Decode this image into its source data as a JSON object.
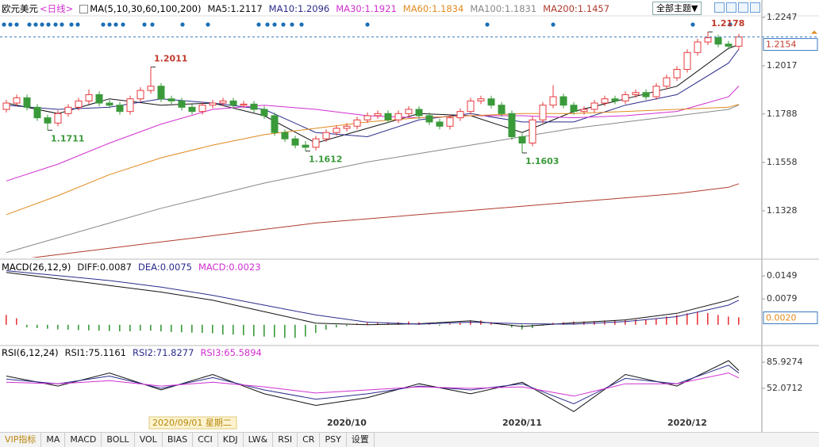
{
  "chart_data": {
    "type": "candlestick",
    "title": "欧元美元",
    "period": "<日线>",
    "indicator": "MA(5,10,30,60,100,200)",
    "toolbar": "全部主题▼",
    "up_color": "#e8383d",
    "down_color": "#3a9a3a",
    "ylim": [
      1.1106,
      1.2273
    ],
    "yticks": [
      1.2247,
      1.2017,
      1.1788,
      1.1558,
      1.1328
    ],
    "last_price": 1.2154,
    "candles": [
      [
        1.181,
        1.1855,
        1.1795,
        1.184
      ],
      [
        1.184,
        1.188,
        1.1825,
        1.1865
      ],
      [
        1.1865,
        1.188,
        1.1805,
        1.182
      ],
      [
        1.182,
        1.1835,
        1.1755,
        1.177
      ],
      [
        1.177,
        1.1785,
        1.1711,
        1.1745
      ],
      [
        1.1745,
        1.1805,
        1.173,
        1.179
      ],
      [
        1.179,
        1.1835,
        1.1775,
        1.182
      ],
      [
        1.182,
        1.1865,
        1.1805,
        1.185
      ],
      [
        1.185,
        1.1905,
        1.1835,
        1.188
      ],
      [
        1.188,
        1.1895,
        1.1825,
        1.184
      ],
      [
        1.184,
        1.1855,
        1.1815,
        1.183
      ],
      [
        1.183,
        1.1845,
        1.1785,
        1.18
      ],
      [
        1.18,
        1.1875,
        1.1785,
        1.186
      ],
      [
        1.186,
        1.1915,
        1.1845,
        1.19
      ],
      [
        1.19,
        1.2011,
        1.1885,
        1.192
      ],
      [
        1.192,
        1.1935,
        1.1845,
        1.186
      ],
      [
        1.186,
        1.1875,
        1.1835,
        1.185
      ],
      [
        1.185,
        1.1865,
        1.1805,
        1.182
      ],
      [
        1.182,
        1.1835,
        1.1785,
        1.18
      ],
      [
        1.18,
        1.1845,
        1.1785,
        1.183
      ],
      [
        1.183,
        1.1855,
        1.1815,
        1.184
      ],
      [
        1.184,
        1.1865,
        1.1825,
        1.185
      ],
      [
        1.185,
        1.1865,
        1.1815,
        1.183
      ],
      [
        1.183,
        1.185,
        1.1815,
        1.1835
      ],
      [
        1.1835,
        1.185,
        1.1795,
        1.181
      ],
      [
        1.181,
        1.1825,
        1.1765,
        1.178
      ],
      [
        1.178,
        1.1795,
        1.1685,
        1.17
      ],
      [
        1.17,
        1.1715,
        1.1655,
        1.167
      ],
      [
        1.167,
        1.1685,
        1.1625,
        1.164
      ],
      [
        1.164,
        1.166,
        1.1612,
        1.163
      ],
      [
        1.163,
        1.1685,
        1.1615,
        1.167
      ],
      [
        1.167,
        1.1715,
        1.1655,
        1.17
      ],
      [
        1.17,
        1.1735,
        1.1685,
        1.172
      ],
      [
        1.172,
        1.1745,
        1.1705,
        1.173
      ],
      [
        1.173,
        1.1775,
        1.1715,
        1.176
      ],
      [
        1.176,
        1.1795,
        1.1745,
        1.178
      ],
      [
        1.178,
        1.1805,
        1.1765,
        1.179
      ],
      [
        1.179,
        1.1805,
        1.1745,
        1.176
      ],
      [
        1.176,
        1.1805,
        1.1745,
        1.179
      ],
      [
        1.179,
        1.1825,
        1.1775,
        1.181
      ],
      [
        1.181,
        1.1825,
        1.1765,
        1.178
      ],
      [
        1.178,
        1.1795,
        1.1735,
        1.175
      ],
      [
        1.175,
        1.1765,
        1.1715,
        1.173
      ],
      [
        1.173,
        1.1785,
        1.1715,
        1.177
      ],
      [
        1.177,
        1.1815,
        1.1755,
        1.18
      ],
      [
        1.18,
        1.1865,
        1.1785,
        1.185
      ],
      [
        1.185,
        1.1875,
        1.1835,
        1.186
      ],
      [
        1.186,
        1.1875,
        1.1815,
        1.183
      ],
      [
        1.183,
        1.1845,
        1.1775,
        1.179
      ],
      [
        1.179,
        1.1805,
        1.1665,
        1.168
      ],
      [
        1.168,
        1.1695,
        1.1603,
        1.165
      ],
      [
        1.165,
        1.1775,
        1.1635,
        1.176
      ],
      [
        1.176,
        1.1845,
        1.1745,
        1.183
      ],
      [
        1.183,
        1.1925,
        1.1815,
        1.187
      ],
      [
        1.187,
        1.1885,
        1.1815,
        1.183
      ],
      [
        1.183,
        1.1845,
        1.1785,
        1.18
      ],
      [
        1.18,
        1.1825,
        1.1785,
        1.181
      ],
      [
        1.181,
        1.1855,
        1.1795,
        1.184
      ],
      [
        1.184,
        1.1875,
        1.1825,
        1.186
      ],
      [
        1.186,
        1.1875,
        1.1835,
        1.185
      ],
      [
        1.185,
        1.1895,
        1.1835,
        1.188
      ],
      [
        1.188,
        1.1905,
        1.1865,
        1.189
      ],
      [
        1.189,
        1.1905,
        1.1855,
        1.187
      ],
      [
        1.187,
        1.1935,
        1.1855,
        1.192
      ],
      [
        1.192,
        1.1975,
        1.1905,
        1.196
      ],
      [
        1.196,
        1.2015,
        1.1945,
        1.2
      ],
      [
        1.2,
        1.2095,
        1.1985,
        1.208
      ],
      [
        1.208,
        1.2145,
        1.2065,
        1.213
      ],
      [
        1.213,
        1.2178,
        1.2115,
        1.215
      ],
      [
        1.215,
        1.2165,
        1.2105,
        1.212
      ],
      [
        1.212,
        1.2135,
        1.2095,
        1.211
      ],
      [
        1.211,
        1.2169,
        1.2095,
        1.2154
      ]
    ],
    "annotations": [
      {
        "x": 4,
        "value": 1.1711
      },
      {
        "x": 14,
        "value": 1.2011
      },
      {
        "x": 29,
        "value": 1.1612
      },
      {
        "x": 50,
        "value": 1.1603
      },
      {
        "x": 68,
        "value": 1.2178
      }
    ],
    "line_x": [
      0,
      5,
      10,
      15,
      20,
      25,
      30,
      35,
      40,
      45,
      50,
      55,
      60,
      65,
      70,
      71
    ],
    "series": [
      {
        "name": "MA5:1.2117",
        "color": "#111111",
        "values": [
          1.184,
          1.179,
          1.186,
          1.183,
          1.184,
          1.178,
          1.165,
          1.172,
          1.179,
          1.178,
          1.17,
          1.18,
          1.186,
          1.192,
          1.21,
          1.2117
        ]
      },
      {
        "name": "MA10:1.2096",
        "color": "#2b2b8c",
        "values": [
          1.183,
          1.181,
          1.182,
          1.186,
          1.184,
          1.181,
          1.17,
          1.168,
          1.176,
          1.179,
          1.175,
          1.175,
          1.183,
          1.188,
          1.203,
          1.2096
        ]
      },
      {
        "name": "MA30:1.1921",
        "color": "#d12fd1",
        "values": [
          1.147,
          1.155,
          1.165,
          1.174,
          1.181,
          1.183,
          1.181,
          1.178,
          1.177,
          1.178,
          1.178,
          1.177,
          1.178,
          1.18,
          1.187,
          1.1921
        ]
      },
      {
        "name": "MA60:1.1834",
        "color": "#e08a1e",
        "values": [
          1.131,
          1.14,
          1.15,
          1.158,
          1.164,
          1.169,
          1.172,
          1.175,
          1.177,
          1.178,
          1.179,
          1.179,
          1.18,
          1.181,
          1.182,
          1.1834
        ]
      },
      {
        "name": "MA100:1.1831",
        "color": "#888888",
        "values": [
          1.113,
          1.12,
          1.127,
          1.134,
          1.14,
          1.146,
          1.151,
          1.156,
          1.16,
          1.164,
          1.168,
          1.172,
          1.175,
          1.178,
          1.181,
          1.1831
        ]
      },
      {
        "name": "MA200:1.1457",
        "color": "#b03a2e",
        "values": [
          1.109,
          1.112,
          1.115,
          1.118,
          1.121,
          1.124,
          1.127,
          1.129,
          1.131,
          1.133,
          1.135,
          1.137,
          1.139,
          1.141,
          1.144,
          1.1457
        ]
      }
    ],
    "xticks": [
      {
        "value": 33,
        "label": "2020/10"
      },
      {
        "value": 50,
        "label": "2020/11"
      },
      {
        "value": 66,
        "label": "2020/12"
      }
    ],
    "cursor": {
      "value": 14,
      "label": "2020/09/01 星期二"
    },
    "macd": {
      "title": "MACD(26,12,9)",
      "ylim": [
        -0.0061,
        0.0164
      ],
      "yticks": [
        0.0149,
        0.0079
      ],
      "current": {
        "value": 0.002,
        "label": "0.0020"
      },
      "series": [
        {
          "name": "DIFF:0.0087",
          "color": "#111111",
          "values": [
            0.016,
            0.014,
            0.012,
            0.01,
            0.0075,
            0.004,
            0.0005,
            0.0,
            0.0003,
            0.0012,
            -0.0005,
            0.0006,
            0.0015,
            0.0035,
            0.0075,
            0.0087
          ]
        },
        {
          "name": "DEA:0.0075",
          "color": "#2b2b8c",
          "values": [
            0.0165,
            0.015,
            0.0135,
            0.0115,
            0.009,
            0.006,
            0.003,
            0.0008,
            0.0002,
            0.0008,
            0.0003,
            0.0002,
            0.001,
            0.0025,
            0.006,
            0.0075
          ]
        }
      ],
      "histogram": {
        "name": "MACD:0.0023",
        "color": "#d12fd1",
        "values": [
          0.003,
          0.002,
          -0.0008,
          -0.001,
          -0.0012,
          -0.0014,
          -0.0015,
          -0.0016,
          -0.0017,
          -0.0018,
          -0.0019,
          -0.002,
          -0.002,
          -0.0018,
          -0.0018,
          -0.002,
          -0.0022,
          -0.0023,
          -0.0024,
          -0.0025,
          -0.0026,
          -0.003,
          -0.003,
          -0.0032,
          -0.0035,
          -0.0036,
          -0.0038,
          -0.004,
          -0.004,
          -0.0036,
          -0.0025,
          -0.0015,
          -0.0008,
          -0.0004,
          0.0004,
          0.0006,
          0.0008,
          0.0006,
          0.0008,
          0.001,
          0.0008,
          0.0004,
          -0.0003,
          0.0003,
          0.0008,
          0.0012,
          0.0013,
          0.0008,
          0.0002,
          -0.0008,
          -0.0014,
          -0.001,
          -0.0003,
          0.0006,
          0.0008,
          0.001,
          0.001,
          0.0011,
          0.0013,
          0.0013,
          0.0015,
          0.0016,
          0.0016,
          0.002,
          0.0025,
          0.003,
          0.0035,
          0.0038,
          0.0036,
          0.003,
          0.0025,
          0.0023
        ]
      }
    },
    "rsi": {
      "title": "RSI(6,12,24)",
      "ylim": [
        11.0,
        93.1
      ],
      "yticks": [
        85.9274,
        52.0712
      ],
      "series": [
        {
          "name": "RSI1:75.1161",
          "color": "#111111",
          "values": [
            68,
            55,
            72,
            50,
            70,
            45,
            30,
            40,
            58,
            45,
            60,
            22,
            70,
            55,
            88,
            75.1161
          ]
        },
        {
          "name": "RSI2:71.8277",
          "color": "#2b2b8c",
          "values": [
            64,
            58,
            68,
            52,
            66,
            50,
            38,
            45,
            55,
            50,
            58,
            32,
            65,
            58,
            82,
            71.8277
          ]
        },
        {
          "name": "RSI3:65.5894",
          "color": "#d12fd1",
          "values": [
            60,
            58,
            62,
            55,
            60,
            54,
            46,
            50,
            54,
            52,
            54,
            42,
            58,
            58,
            72,
            65.5894
          ]
        }
      ]
    },
    "tabs": [
      "VIP指标",
      "MA",
      "MACD",
      "BOLL",
      "VOL",
      "BIAS",
      "CCI",
      "KDJ",
      "LW&",
      "RSI",
      "CR",
      "PSY",
      "设置"
    ]
  }
}
